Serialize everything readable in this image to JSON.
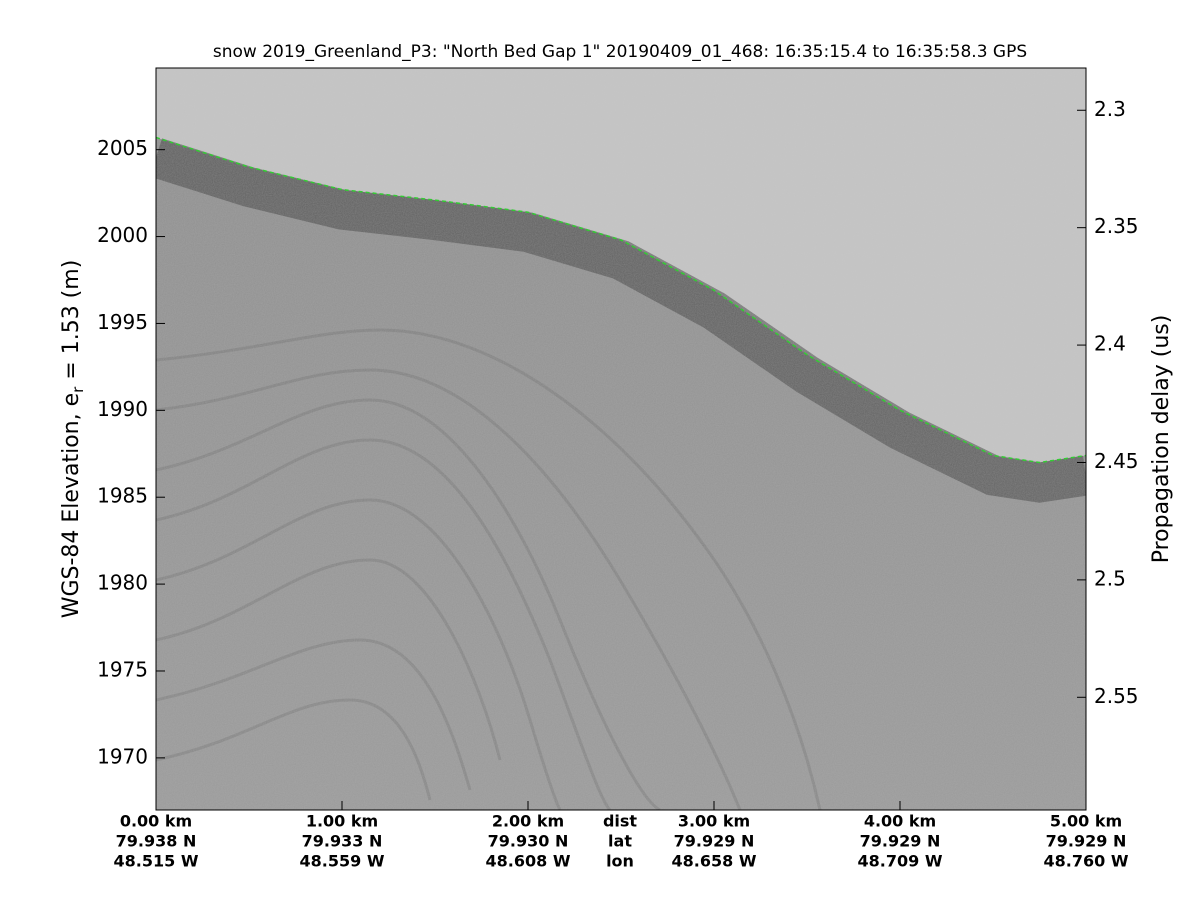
{
  "chart_data": {
    "type": "echogram",
    "title": "snow 2019_Greenland_P3: \"North Bed Gap 1\"  20190409_01_468: 16:35:15.4 to 16:35:58.3 GPS",
    "ylabel": {
      "main": "WGS-84 Elevation, e",
      "sub": "r",
      "rest": " = 1.53 (m)"
    },
    "y2label": "Propagation delay (us)",
    "xlim": [
      0,
      5
    ],
    "xticks": [
      {
        "value": 0,
        "label": "0.00 km"
      },
      {
        "value": 1,
        "label": "1.00 km"
      },
      {
        "value": 2,
        "label": "2.00 km"
      },
      {
        "value": 3,
        "label": "3.00 km"
      },
      {
        "value": 4,
        "label": "4.00 km"
      },
      {
        "value": 5,
        "label": "5.00 km"
      }
    ],
    "lat_labels": [
      "79.938 N",
      "79.933 N",
      "79.930 N",
      "79.929 N",
      "79.929 N",
      "79.929 N"
    ],
    "lon_labels": [
      "48.515 W",
      "48.559 W",
      "48.608 W",
      "48.658 W",
      "48.709 W",
      "48.760 W"
    ],
    "row_labels": [
      "dist",
      "lat",
      "lon"
    ],
    "ylim": [
      1967.0,
      2009.7
    ],
    "yticks": [
      1970,
      1975,
      1980,
      1985,
      1990,
      1995,
      2000,
      2005
    ],
    "y2lim": [
      2.598,
      2.282
    ],
    "y2ticks": [
      2.3,
      2.35,
      2.4,
      2.45,
      2.5,
      2.55
    ],
    "surface": {
      "color": "#33cc33",
      "x": [
        0,
        0.5,
        1,
        1.5,
        2,
        2.5,
        3,
        3.5,
        4,
        4.5,
        4.75,
        5
      ],
      "values": [
        2005.7,
        2004.0,
        2002.7,
        2002.1,
        2001.4,
        1999.8,
        1996.9,
        1993.2,
        1990.0,
        1987.4,
        1987.0,
        1987.4
      ]
    }
  }
}
